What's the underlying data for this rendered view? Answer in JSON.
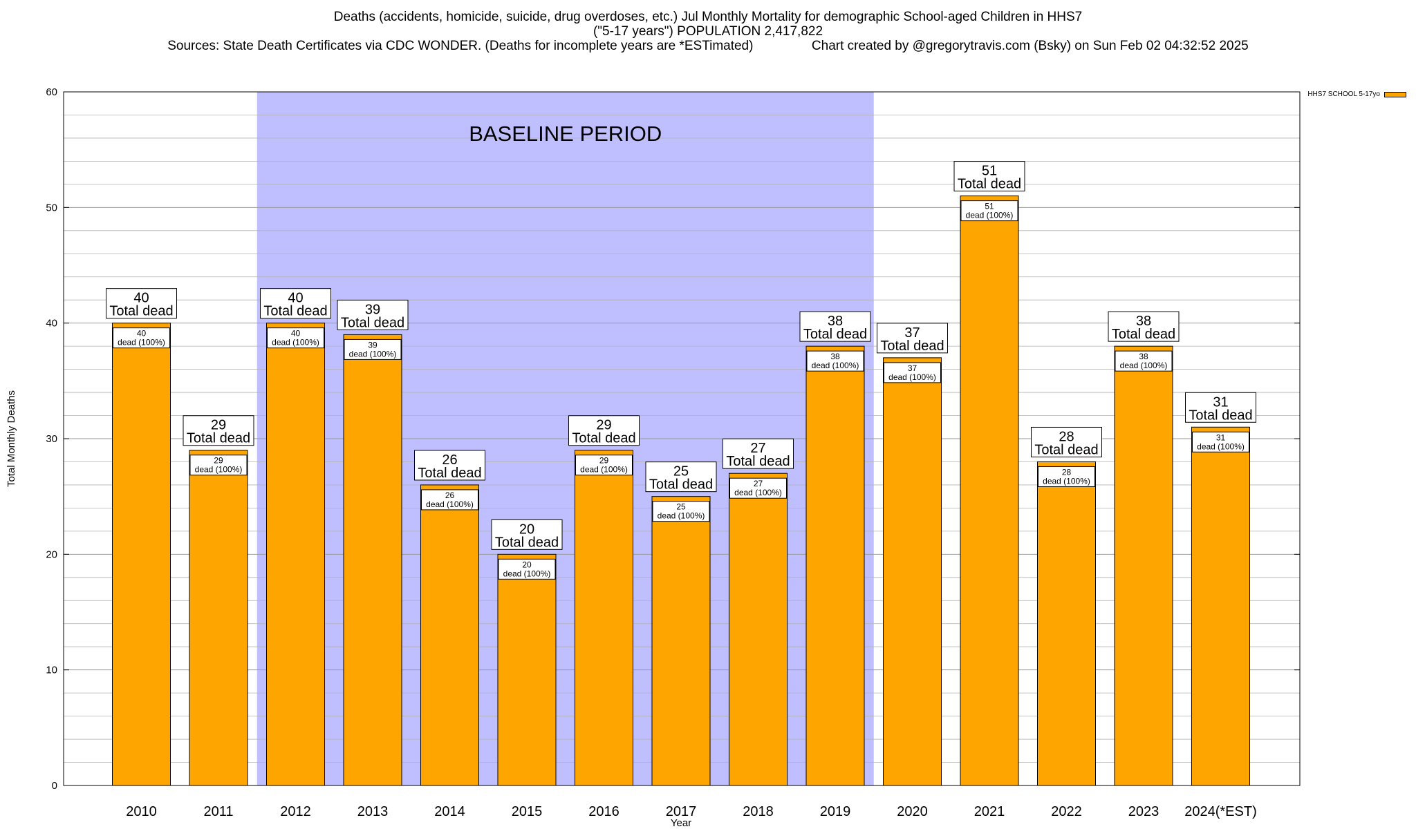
{
  "title_lines": [
    "Deaths (accidents, homicide, suicide, drug overdoses, etc.) Jul Monthly Mortality for demographic School-aged Children in HHS7",
    "(\"5-17 years\") POPULATION 2,417,822",
    "Sources: State Death Certificates via CDC WONDER. (Deaths for incomplete years are *ESTimated)                Chart created by @gregorytravis.com (Bsky) on Sun Feb 02 04:32:52 2025"
  ],
  "legend": {
    "label": "HHS7 SCHOOL 5-17yo"
  },
  "colors": {
    "bar": "#FFA500",
    "baseline": "#BFBFFF",
    "grid": "#B0B0B0"
  },
  "chart_data": {
    "type": "bar",
    "xlabel": "Year",
    "ylabel": "Total Monthly Deaths",
    "ylim": [
      0,
      60
    ],
    "yticks": [
      0,
      10,
      20,
      30,
      40,
      50,
      60
    ],
    "grid": true,
    "legend_position": "top-right",
    "categories": [
      "2010",
      "2011",
      "2012",
      "2013",
      "2014",
      "2015",
      "2016",
      "2017",
      "2018",
      "2019",
      "2020",
      "2021",
      "2022",
      "2023",
      "2024(*EST)"
    ],
    "series": [
      {
        "name": "HHS7 SCHOOL 5-17yo",
        "values": [
          40,
          29,
          40,
          39,
          26,
          20,
          29,
          25,
          27,
          38,
          37,
          51,
          28,
          38,
          31
        ]
      }
    ],
    "total_label": "Total dead",
    "inner_label": "dead (100%)",
    "baseline": {
      "label": "BASELINE PERIOD",
      "start": "2012",
      "end": "2019"
    }
  }
}
